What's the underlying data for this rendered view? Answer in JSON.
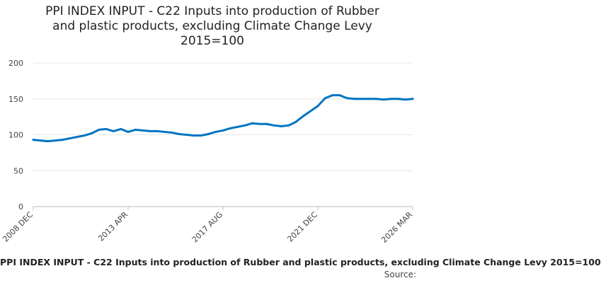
{
  "chart_data": {
    "type": "line",
    "title": "PPI INDEX INPUT - C22 Inputs into production of Rubber and plastic products, excluding Climate Change Levy 2015=100",
    "title_lines": [
      "PPI INDEX INPUT - C22 Inputs into production of Rubber",
      "and plastic products, excluding Climate Change Levy",
      "2015=100"
    ],
    "xlabel": "",
    "ylabel": "",
    "ylim": [
      0,
      200
    ],
    "yticks": [
      0,
      50,
      100,
      150,
      200
    ],
    "x_tick_labels": [
      "2008 DEC",
      "2013 APR",
      "2017 AUG",
      "2021 DEC",
      "2026 MAR"
    ],
    "grid": true,
    "legend_text": "PPI INDEX INPUT - C22 Inputs into production of Rubber and plastic products, excluding Climate Change Levy 2015=100",
    "source_label": "Source:",
    "line_color": "#0075c2",
    "series": [
      {
        "x": [
          "2008 DEC",
          "2009 APR",
          "2009 AUG",
          "2009 DEC",
          "2010 APR",
          "2010 AUG",
          "2010 DEC",
          "2011 APR",
          "2011 AUG",
          "2011 DEC",
          "2012 APR",
          "2012 AUG",
          "2012 DEC",
          "2013 APR",
          "2013 AUG",
          "2013 DEC",
          "2014 APR",
          "2014 AUG",
          "2014 DEC",
          "2015 APR",
          "2015 AUG",
          "2015 DEC",
          "2016 APR",
          "2016 AUG",
          "2016 DEC",
          "2017 APR",
          "2017 AUG",
          "2017 DEC",
          "2018 APR",
          "2018 AUG",
          "2018 DEC",
          "2019 APR",
          "2019 AUG",
          "2019 DEC",
          "2020 APR",
          "2020 AUG",
          "2020 DEC",
          "2021 APR",
          "2021 AUG",
          "2021 DEC",
          "2022 APR",
          "2022 AUG",
          "2022 DEC",
          "2023 APR",
          "2023 AUG",
          "2023 DEC",
          "2024 APR",
          "2024 AUG",
          "2024 DEC",
          "2025 APR",
          "2025 AUG",
          "2025 DEC",
          "2026 MAR"
        ],
        "values": [
          93,
          92,
          91,
          92,
          93,
          95,
          97,
          99,
          102,
          107,
          108,
          105,
          108,
          104,
          107,
          106,
          105,
          105,
          104,
          103,
          101,
          100,
          99,
          99,
          101,
          104,
          106,
          109,
          111,
          113,
          116,
          115,
          115,
          113,
          112,
          113,
          118,
          126,
          133,
          140,
          151,
          155,
          155,
          151,
          150,
          150,
          150,
          150,
          149,
          150,
          150,
          149,
          150
        ]
      }
    ]
  }
}
